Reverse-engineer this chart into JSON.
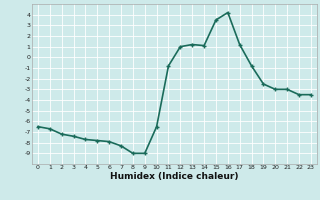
{
  "x": [
    0,
    1,
    2,
    3,
    4,
    5,
    6,
    7,
    8,
    9,
    10,
    11,
    12,
    13,
    14,
    15,
    16,
    17,
    18,
    19,
    20,
    21,
    22,
    23
  ],
  "y": [
    -6.5,
    -6.7,
    -7.2,
    -7.4,
    -7.7,
    -7.8,
    -7.9,
    -8.3,
    -9.0,
    -9.0,
    -6.5,
    -0.8,
    1.0,
    1.2,
    1.1,
    3.5,
    4.2,
    1.2,
    -0.8,
    -2.5,
    -3.0,
    -3.0,
    -3.5,
    -3.5
  ],
  "line_color": "#1a6b5a",
  "marker": "+",
  "marker_size": 3,
  "xlabel": "Humidex (Indice chaleur)",
  "xlim": [
    -0.5,
    23.5
  ],
  "ylim": [
    -10,
    5
  ],
  "yticks": [
    4,
    3,
    2,
    1,
    0,
    -1,
    -2,
    -3,
    -4,
    -5,
    -6,
    -7,
    -8,
    -9
  ],
  "xticks": [
    0,
    1,
    2,
    3,
    4,
    5,
    6,
    7,
    8,
    9,
    10,
    11,
    12,
    13,
    14,
    15,
    16,
    17,
    18,
    19,
    20,
    21,
    22,
    23
  ],
  "background_color": "#ceeaea",
  "grid_color": "#ffffff",
  "line_width": 1.2,
  "tick_fontsize": 4.5,
  "xlabel_fontsize": 6.5
}
